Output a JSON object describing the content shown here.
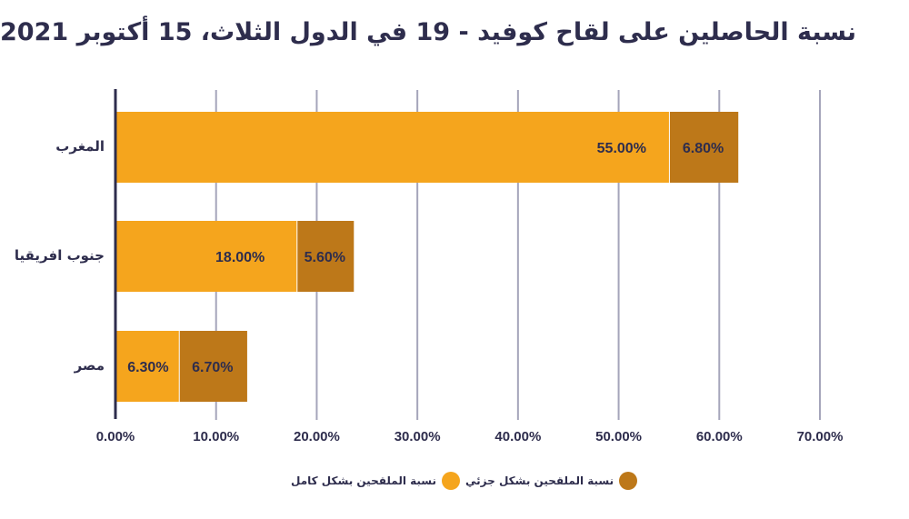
{
  "chart_data": {
    "type": "bar",
    "orientation": "horizontal",
    "stacked": true,
    "title": "نسبة الحاصلين على لقاح كوفيد - 19 في الدول الثلاث، 15 أكتوبر 2021",
    "categories": [
      "المغرب",
      "جنوب افريقيا",
      "مصر"
    ],
    "series": [
      {
        "name": "نسبة الملقحين بشكل كامل",
        "color": "#f5a51d",
        "values": [
          55.0,
          18.0,
          6.3
        ],
        "labels": [
          "55.00%",
          "18.00%",
          "6.30%"
        ]
      },
      {
        "name": "نسبة الملقحين بشكل جزئي",
        "color": "#bd7819",
        "values": [
          6.8,
          5.6,
          6.7
        ],
        "labels": [
          "6.80%",
          "5.60%",
          "6.70%"
        ]
      }
    ],
    "xlim": [
      0,
      70
    ],
    "xticks": [
      0,
      10,
      20,
      30,
      40,
      50,
      60,
      70
    ],
    "xtick_labels": [
      "0.00%",
      "10.00%",
      "20.00%",
      "30.00%",
      "40.00%",
      "50.00%",
      "60.00%",
      "70.00%"
    ],
    "xlabel": "",
    "ylabel": "",
    "grid": true,
    "legend_position": "bottom-center"
  },
  "legend": {
    "partial": "نسبة الملقحين بشكل جزئي",
    "full": "نسبة الملقحين بشكل كامل"
  }
}
